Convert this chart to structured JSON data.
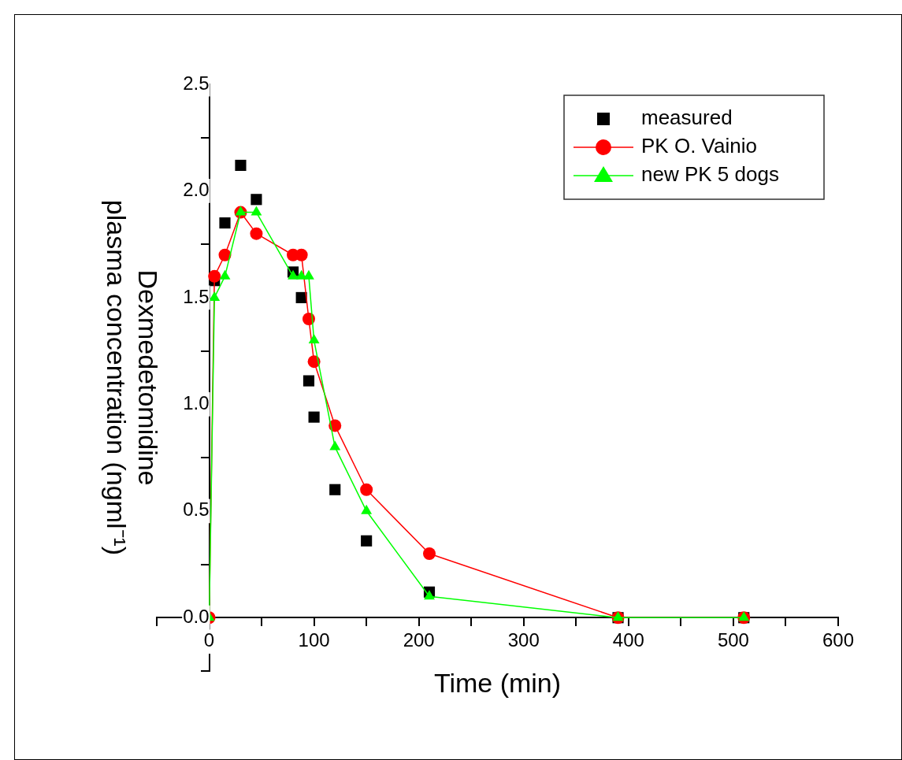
{
  "chart_data": {
    "type": "line",
    "xlabel": "Time (min)",
    "ylabel": "Dexmedetomidine\nplasma concentration (ngml⁻¹)",
    "x": [
      0,
      5,
      15,
      30,
      45,
      80,
      88,
      95,
      100,
      120,
      150,
      210,
      390,
      510
    ],
    "series": [
      {
        "name": "measured",
        "type": "scatter",
        "color": "#000000",
        "marker": "square",
        "values": [
          null,
          1.58,
          1.85,
          2.12,
          1.96,
          1.62,
          1.5,
          1.11,
          0.94,
          0.6,
          0.36,
          0.12,
          0,
          0
        ]
      },
      {
        "name": "PK O. Vainio",
        "type": "line",
        "color": "#ff0000",
        "marker": "circle",
        "line_style": "solid",
        "values": [
          0,
          1.6,
          1.7,
          1.9,
          1.8,
          1.7,
          1.7,
          1.4,
          1.2,
          0.9,
          0.6,
          0.3,
          0,
          0
        ]
      },
      {
        "name": "new PK 5 dogs",
        "type": "line",
        "color": "#00ff00",
        "marker": "triangle",
        "line_style": "solid",
        "values": [
          0,
          1.5,
          1.6,
          1.9,
          1.9,
          1.6,
          1.6,
          1.6,
          1.3,
          0.8,
          0.5,
          0.1,
          0,
          0
        ]
      }
    ],
    "xlim": [
      -50,
      600
    ],
    "ylim": [
      -0.25,
      2.5
    ],
    "xticks": [
      {
        "value": -50,
        "label": null
      },
      0,
      {
        "value": 50,
        "label": null
      },
      100,
      {
        "value": 150,
        "label": null
      },
      200,
      {
        "value": 250,
        "label": null
      },
      300,
      {
        "value": 350,
        "label": null
      },
      400,
      {
        "value": 450,
        "label": null
      },
      500,
      {
        "value": 550,
        "label": null
      },
      600
    ],
    "yticks": [
      {
        "value": -0.25,
        "label": null
      },
      {
        "value": 0,
        "label": "0.0"
      },
      {
        "value": 0.25,
        "label": null
      },
      0.5,
      {
        "value": 0.75,
        "label": null
      },
      {
        "value": 1,
        "label": "1.0"
      },
      {
        "value": 1.25,
        "label": null
      },
      1.5,
      {
        "value": 1.75,
        "label": null
      },
      {
        "value": 2,
        "label": "2.0"
      },
      {
        "value": 2.25,
        "label": null
      },
      2.5
    ],
    "grid": false,
    "legend": "top right"
  }
}
